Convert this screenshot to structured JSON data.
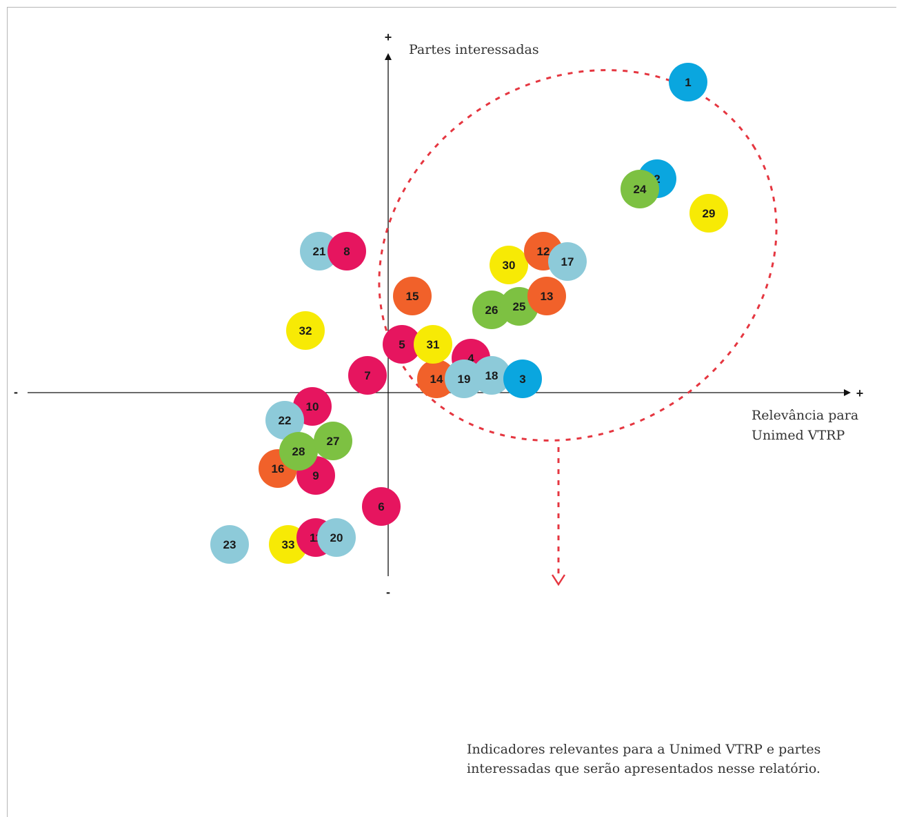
{
  "colors": {
    "blue": "#0aa6df",
    "green": "#7dc142",
    "yellow": "#f7ea05",
    "pink": "#e6155f",
    "orange": "#f1612a",
    "lightblue": "#8dcad9",
    "ellipse": "#e53640",
    "axis": "#111111"
  },
  "axes": {
    "y_label": "Partes interessadas",
    "x_label_line1": "Relevância para",
    "x_label_line2": "Unimed VTRP",
    "plus": "+",
    "minus": "-"
  },
  "note_text": "Indicadores relevantes para a Unimed VTRP e partes interessadas que serão apresentados nesse relatório.",
  "chart_data": {
    "type": "scatter",
    "xlim": [
      -10,
      10
    ],
    "ylim": [
      -10,
      10
    ],
    "grid": false,
    "points": [
      {
        "label": "23",
        "x": -4.6,
        "y": -4.4,
        "color": "lightblue"
      },
      {
        "label": "33",
        "x": -2.9,
        "y": -4.4,
        "color": "yellow"
      },
      {
        "label": "11",
        "x": -2.1,
        "y": -4.2,
        "color": "pink"
      },
      {
        "label": "20",
        "x": -1.5,
        "y": -4.2,
        "color": "lightblue"
      },
      {
        "label": "6",
        "x": -0.2,
        "y": -3.3,
        "color": "pink"
      },
      {
        "label": "16",
        "x": -3.2,
        "y": -2.2,
        "color": "orange"
      },
      {
        "label": "9",
        "x": -2.1,
        "y": -2.4,
        "color": "pink"
      },
      {
        "label": "10",
        "x": -2.2,
        "y": -0.4,
        "color": "pink"
      },
      {
        "label": "22",
        "x": -3.0,
        "y": -0.8,
        "color": "lightblue"
      },
      {
        "label": "28",
        "x": -2.6,
        "y": -1.7,
        "color": "green"
      },
      {
        "label": "27",
        "x": -1.6,
        "y": -1.4,
        "color": "green"
      },
      {
        "label": "7",
        "x": -0.6,
        "y": 0.5,
        "color": "pink"
      },
      {
        "label": "32",
        "x": -2.4,
        "y": 1.8,
        "color": "yellow"
      },
      {
        "label": "21",
        "x": -2.0,
        "y": 4.1,
        "color": "lightblue"
      },
      {
        "label": "8",
        "x": -1.2,
        "y": 4.1,
        "color": "pink"
      },
      {
        "label": "15",
        "x": 0.7,
        "y": 2.8,
        "color": "orange"
      },
      {
        "label": "5",
        "x": 0.4,
        "y": 1.4,
        "color": "pink"
      },
      {
        "label": "14",
        "x": 1.4,
        "y": 0.4,
        "color": "orange"
      },
      {
        "label": "31",
        "x": 1.3,
        "y": 1.4,
        "color": "yellow"
      },
      {
        "label": "4",
        "x": 2.4,
        "y": 1.0,
        "color": "pink"
      },
      {
        "label": "19",
        "x": 2.2,
        "y": 0.4,
        "color": "lightblue"
      },
      {
        "label": "18",
        "x": 3.0,
        "y": 0.5,
        "color": "lightblue"
      },
      {
        "label": "3",
        "x": 3.9,
        "y": 0.4,
        "color": "blue"
      },
      {
        "label": "26",
        "x": 3.0,
        "y": 2.4,
        "color": "green"
      },
      {
        "label": "25",
        "x": 3.8,
        "y": 2.5,
        "color": "green"
      },
      {
        "label": "13",
        "x": 4.6,
        "y": 2.8,
        "color": "orange"
      },
      {
        "label": "30",
        "x": 3.5,
        "y": 3.7,
        "color": "yellow"
      },
      {
        "label": "12",
        "x": 4.5,
        "y": 4.1,
        "color": "orange"
      },
      {
        "label": "17",
        "x": 5.2,
        "y": 3.8,
        "color": "lightblue"
      },
      {
        "label": "2",
        "x": 7.8,
        "y": 6.2,
        "color": "blue"
      },
      {
        "label": "24",
        "x": 7.3,
        "y": 5.9,
        "color": "green"
      },
      {
        "label": "29",
        "x": 9.3,
        "y": 5.2,
        "color": "yellow"
      },
      {
        "label": "1",
        "x": 8.7,
        "y": 9.0,
        "color": "blue"
      }
    ]
  }
}
